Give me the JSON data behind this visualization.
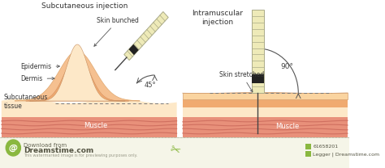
{
  "title_left": "Subcutaneous injection",
  "title_right": "Intramuscular\ninjection",
  "label_epidermis": "Epidermis",
  "label_dermis": "Dermis",
  "label_subcut": "Subcutaneous\ntissue",
  "label_muscle_left": "Muscle",
  "label_muscle_right": "Muscle",
  "label_skin_bunched": "Skin bunched",
  "label_skin_stretched": "Skin stretched",
  "label_angle_left": "45°",
  "label_angle_right": "90°",
  "bg_color": "#ffffff",
  "skin_outer_color": "#f5c8a0",
  "dermis_color": "#f0aa70",
  "subcut_color": "#fde8c8",
  "muscle_color": "#e8907a",
  "muscle_stripe_color": "#d07060",
  "flat_skin_color": "#fad4a8",
  "watermark_bg": "#f5f5e8",
  "watermark_line": "#ccccaa",
  "wm_green": "#8ab840",
  "watermark_text1": "Download from",
  "watermark_text2": "Dreamstime.com",
  "watermark_sub": "This watermarked image is for previewing purposes only.",
  "watermark_id": "61658201",
  "watermark_label": "Legger | Dreamstime.com"
}
